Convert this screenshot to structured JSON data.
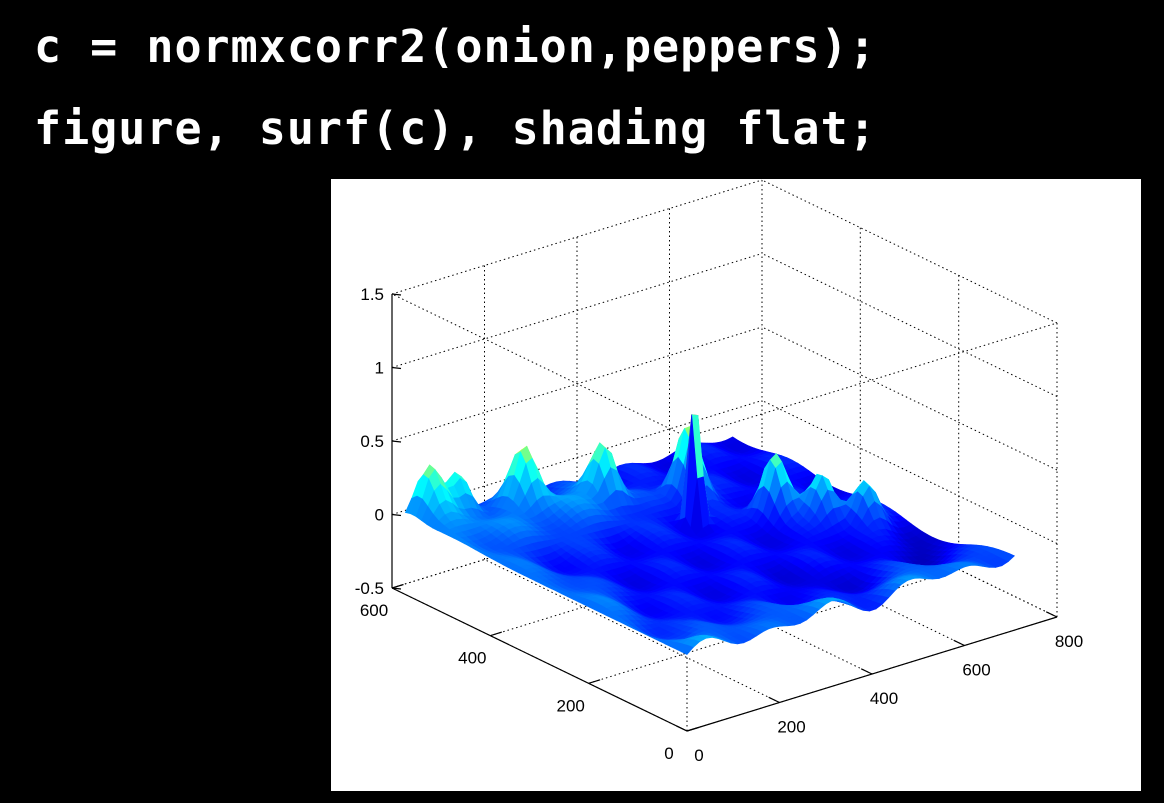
{
  "code": {
    "line1": "c = normxcorr2(onion,peppers);",
    "line2": "figure, surf(c), shading flat;"
  },
  "colors": {
    "background": "#000000",
    "code_text": "#ffffff",
    "figure_bg": "#ffffff",
    "colormap": [
      "#00008f",
      "#0000ff",
      "#00ffff",
      "#ffff00",
      "#ff0000",
      "#800000"
    ]
  },
  "chart_data": {
    "type": "surface",
    "title": "",
    "xlabel": "",
    "ylabel": "",
    "zlabel": "",
    "xlim": [
      0,
      800
    ],
    "ylim": [
      0,
      600
    ],
    "zlim": [
      -0.5,
      1.5
    ],
    "x_ticks": [
      "0",
      "200",
      "400",
      "600",
      "800"
    ],
    "y_ticks": [
      "0",
      "200",
      "400",
      "600"
    ],
    "z_ticks": [
      "-0.5",
      "0",
      "0.5",
      "1",
      "1.5"
    ],
    "grid": true,
    "colormap": "jet",
    "shading": "flat",
    "surface_extent": {
      "x": [
        0,
        708
      ],
      "y": [
        0,
        573
      ]
    },
    "peak": {
      "x": 415,
      "y": 375,
      "z": 0.9
    },
    "baseline_z": 0,
    "features": [
      {
        "x": 470,
        "y": 440,
        "z": 0.45
      },
      {
        "x": 540,
        "y": 330,
        "z": 0.35
      },
      {
        "x": 590,
        "y": 280,
        "z": 0.25
      },
      {
        "x": 640,
        "y": 240,
        "z": 0.2
      },
      {
        "x": 330,
        "y": 480,
        "z": 0.3
      },
      {
        "x": 200,
        "y": 520,
        "z": 0.28
      },
      {
        "x": 100,
        "y": 560,
        "z": 0.22
      },
      {
        "x": 40,
        "y": 560,
        "z": 0.2
      }
    ]
  }
}
